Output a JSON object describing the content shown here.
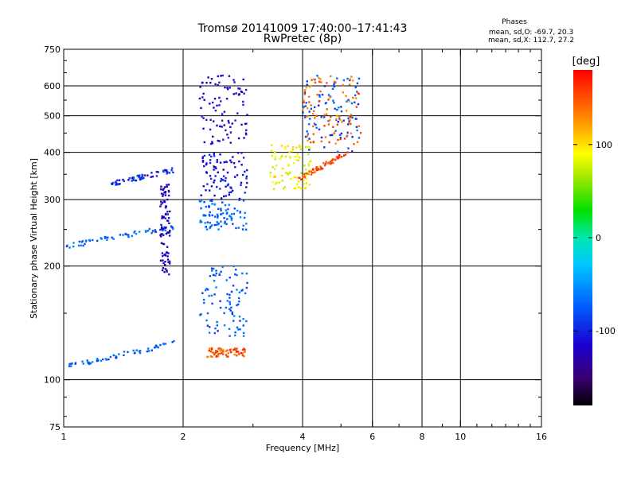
{
  "chart_data": {
    "type": "scatter",
    "title": "Tromsø 20141009 17:40:00–17:41:43",
    "subtitle": "RwPretec (8p)",
    "stats": {
      "heading": "Phases",
      "line1": "mean, sd,O: -69.7, 20.3",
      "line2": "mean, sd,X: 112.7, 27.2"
    },
    "xlabel": "Frequency [MHz]",
    "ylabel": "Stationary phase Virtual Height [km]",
    "xscale": "log",
    "yscale": "log",
    "xlim": [
      1,
      16
    ],
    "ylim": [
      75,
      750
    ],
    "grid": true,
    "x_major_ticks": [
      1,
      2,
      4,
      8,
      16
    ],
    "x_minor_ticks": [
      6,
      10
    ],
    "x_tick_labels": [
      "1",
      "2",
      "4",
      "6",
      "8",
      "10",
      "16"
    ],
    "x_tick_values": [
      1,
      2,
      4,
      6,
      8,
      10,
      16
    ],
    "y_grid_values": [
      100,
      200,
      300,
      400,
      500,
      600
    ],
    "y_tick_values": [
      75,
      100,
      200,
      300,
      400,
      500,
      600,
      750
    ],
    "y_tick_labels": [
      "75",
      "100",
      "200",
      "300",
      "400",
      "500",
      "600",
      "750"
    ],
    "colorbar": {
      "label": "[deg]",
      "range": [
        -180,
        180
      ],
      "tick_values": [
        100,
        0,
        -100
      ],
      "tick_labels": [
        "100",
        "0",
        "-100"
      ],
      "colormap": "rainbow"
    },
    "clusters": [
      {
        "f": [
          1.0,
          1.9
        ],
        "h": [
          225,
          255
        ],
        "phase": -70,
        "shape": "ramp"
      },
      {
        "f": [
          1.0,
          1.9
        ],
        "h": [
          108,
          125
        ],
        "phase": -70,
        "shape": "ramp"
      },
      {
        "f": [
          1.3,
          1.9
        ],
        "h": [
          330,
          360
        ],
        "phase": -100,
        "shape": "ramp"
      },
      {
        "f": [
          1.75,
          1.85
        ],
        "h": [
          190,
          330
        ],
        "phase": -120,
        "shape": "block"
      },
      {
        "f": [
          2.2,
          2.9
        ],
        "h": [
          420,
          640
        ],
        "phase": -115,
        "shape": "block"
      },
      {
        "f": [
          2.2,
          2.9
        ],
        "h": [
          300,
          400
        ],
        "phase": -110,
        "shape": "block"
      },
      {
        "f": [
          2.2,
          2.9
        ],
        "h": [
          250,
          300
        ],
        "phase": -70,
        "shape": "block"
      },
      {
        "f": [
          2.2,
          2.9
        ],
        "h": [
          130,
          200
        ],
        "phase": -75,
        "shape": "block"
      },
      {
        "f": [
          2.3,
          2.9
        ],
        "h": [
          115,
          122
        ],
        "phase": 150,
        "shape": "band"
      },
      {
        "f": [
          4.0,
          5.6
        ],
        "h": [
          400,
          640
        ],
        "phase": -80,
        "shape": "block"
      },
      {
        "f": [
          4.0,
          5.6
        ],
        "h": [
          420,
          640
        ],
        "phase": 140,
        "shape": "block"
      },
      {
        "f": [
          3.9,
          5.2
        ],
        "h": [
          340,
          400
        ],
        "phase": 155,
        "shape": "ramp"
      },
      {
        "f": [
          3.3,
          4.2
        ],
        "h": [
          320,
          420
        ],
        "phase": 90,
        "shape": "block"
      }
    ]
  }
}
